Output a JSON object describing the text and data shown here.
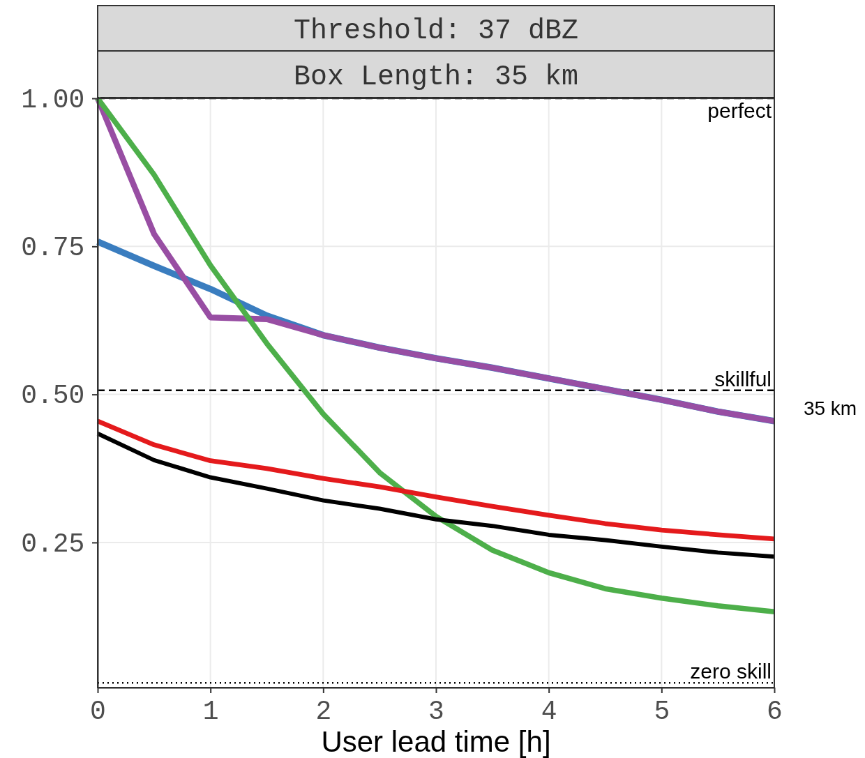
{
  "chart_data": {
    "type": "line",
    "title": "Threshold: 37 dBZ",
    "subtitle": "Box Length:  35 km",
    "xlabel": "User lead time [h]",
    "x": [
      0,
      0.5,
      1,
      1.5,
      2,
      2.5,
      3,
      3.5,
      4,
      4.5,
      5,
      5.5,
      6
    ],
    "series": [
      {
        "color": "#3a7dbf",
        "values": [
          0.758,
          0.717,
          0.678,
          0.633,
          0.6,
          0.579,
          0.561,
          0.545,
          0.527,
          0.509,
          0.491,
          0.471,
          0.455
        ]
      },
      {
        "color": "#984ea3",
        "values": [
          1.0,
          0.771,
          0.63,
          0.627,
          0.6,
          0.579,
          0.561,
          0.545,
          0.527,
          0.509,
          0.491,
          0.471,
          0.455
        ]
      },
      {
        "color": "#4daf4a",
        "values": [
          1.0,
          0.871,
          0.718,
          0.586,
          0.467,
          0.368,
          0.294,
          0.237,
          0.199,
          0.172,
          0.156,
          0.143,
          0.133
        ]
      },
      {
        "color": "#e41a1c",
        "values": [
          0.455,
          0.415,
          0.388,
          0.375,
          0.358,
          0.344,
          0.327,
          0.311,
          0.296,
          0.282,
          0.271,
          0.263,
          0.256
        ]
      },
      {
        "color": "#000000",
        "values": [
          0.434,
          0.389,
          0.36,
          0.341,
          0.321,
          0.307,
          0.289,
          0.278,
          0.263,
          0.254,
          0.243,
          0.233,
          0.226
        ]
      }
    ],
    "xlim": [
      0,
      6
    ],
    "xticks": [
      0,
      1,
      2,
      3,
      4,
      5,
      6
    ],
    "ylim": [
      0.005,
      1.0
    ],
    "yticks": [
      {
        "value": 0.25,
        "label": "0.25"
      },
      {
        "value": 0.5,
        "label": "0.50"
      },
      {
        "value": 0.75,
        "label": "0.75"
      },
      {
        "value": 1,
        "label": "1.00"
      }
    ],
    "grid": true,
    "ref_lines": [
      {
        "axis": "y",
        "value": 1.0,
        "label": "perfect",
        "line_style": "dashed",
        "color": "#000000"
      },
      {
        "axis": "y",
        "value": 0.507,
        "label": "skillful",
        "line_style": "dashed",
        "color": "#000000"
      },
      {
        "axis": "y",
        "value": 0.013,
        "label": "zero skill",
        "line_style": "dotted",
        "color": "#000000"
      }
    ],
    "annotations": [
      "35 km"
    ]
  }
}
